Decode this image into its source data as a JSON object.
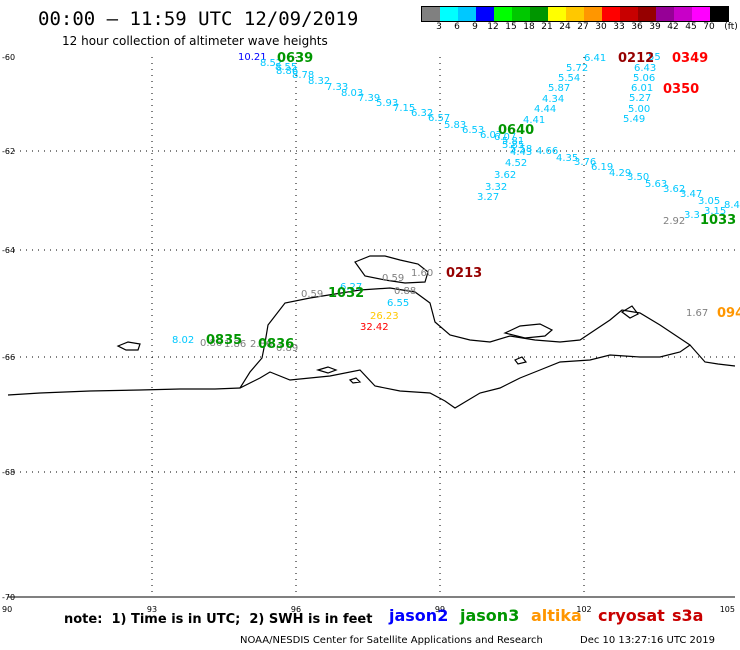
{
  "header": {
    "title": "00:00 – 11:59 UTC 12/09/2019",
    "subtitle": "12 hour collection of altimeter wave heights"
  },
  "color_scale": {
    "colors": [
      "#808080",
      "#00ffff",
      "#00c8ff",
      "#0000ff",
      "#00ff00",
      "#00c800",
      "#009600",
      "#ffff00",
      "#ffc800",
      "#ff9600",
      "#ff0000",
      "#c80000",
      "#960000",
      "#960096",
      "#c800c8",
      "#ff00ff",
      "#000000"
    ],
    "labels": [
      "3",
      "6",
      "9",
      "12",
      "15",
      "18",
      "21",
      "24",
      "27",
      "30",
      "33",
      "36",
      "39",
      "42",
      "45",
      "70",
      "(ft)"
    ]
  },
  "axes": {
    "x_ticks": [
      "90",
      "93",
      "96",
      "99",
      "102",
      "105"
    ],
    "y_ticks": [
      "-60",
      "-62",
      "-64",
      "-66",
      "-68",
      "-70"
    ]
  },
  "readings": [
    {
      "text": "10.21",
      "c": "#0000ff"
    },
    {
      "text": "8.52",
      "c": "#00c8ff"
    },
    {
      "text": "8.55",
      "c": "#00c8ff"
    },
    {
      "text": "8.86",
      "c": "#00c8ff"
    },
    {
      "text": "8.78",
      "c": "#00c8ff"
    },
    {
      "text": "8.32",
      "c": "#00c8ff"
    },
    {
      "text": "7.33",
      "c": "#00c8ff"
    },
    {
      "text": "8.03",
      "c": "#00c8ff"
    },
    {
      "text": "7.39",
      "c": "#00c8ff"
    },
    {
      "text": "5.93",
      "c": "#00c8ff"
    },
    {
      "text": "7.15",
      "c": "#00c8ff"
    },
    {
      "text": "6.32",
      "c": "#00c8ff"
    },
    {
      "text": "6.57",
      "c": "#00c8ff"
    },
    {
      "text": "5.83",
      "c": "#00c8ff"
    },
    {
      "text": "6.53",
      "c": "#00c8ff"
    },
    {
      "text": "6.07",
      "c": "#00c8ff"
    },
    {
      "text": "6.07",
      "c": "#00c8ff"
    },
    {
      "text": "5.81",
      "c": "#00c8ff"
    },
    {
      "text": "5.85",
      "c": "#00c8ff"
    },
    {
      "text": "5.58",
      "c": "#00c8ff"
    },
    {
      "text": "4.43",
      "c": "#00c8ff"
    },
    {
      "text": "4.66",
      "c": "#00c8ff"
    },
    {
      "text": "4.52",
      "c": "#00c8ff"
    },
    {
      "text": "3.62",
      "c": "#00c8ff"
    },
    {
      "text": "3.32",
      "c": "#00c8ff"
    },
    {
      "text": "3.27",
      "c": "#00c8ff"
    },
    {
      "text": "4.41",
      "c": "#00c8ff"
    },
    {
      "text": "4.44",
      "c": "#00c8ff"
    },
    {
      "text": "4.34",
      "c": "#00c8ff"
    },
    {
      "text": "5.87",
      "c": "#00c8ff"
    },
    {
      "text": "5.54",
      "c": "#00c8ff"
    },
    {
      "text": "5.72",
      "c": "#00c8ff"
    },
    {
      "text": "6.41",
      "c": "#00c8ff"
    },
    {
      "text": "4.35",
      "c": "#00c8ff"
    },
    {
      "text": "3.76",
      "c": "#00c8ff"
    },
    {
      "text": "6.19",
      "c": "#00c8ff"
    },
    {
      "text": "4.29",
      "c": "#00c8ff"
    },
    {
      "text": "3.50",
      "c": "#00c8ff"
    },
    {
      "text": "5.63",
      "c": "#00c8ff"
    },
    {
      "text": "3.62",
      "c": "#00c8ff"
    },
    {
      "text": "3.47",
      "c": "#00c8ff"
    },
    {
      "text": "3.05",
      "c": "#00c8ff"
    },
    {
      "text": "3.15",
      "c": "#00c8ff"
    },
    {
      "text": "3.3",
      "c": "#00c8ff"
    },
    {
      "text": "8.4",
      "c": "#00c8ff"
    },
    {
      "text": "2.92",
      "c": "#808080"
    },
    {
      "text": "6.43",
      "c": "#00c8ff"
    },
    {
      "text": "5.06",
      "c": "#00c8ff"
    },
    {
      "text": "6.01",
      "c": "#00c8ff"
    },
    {
      "text": "5.27",
      "c": "#00c8ff"
    },
    {
      "text": "5.00",
      "c": "#00c8ff"
    },
    {
      "text": "5.49",
      "c": "#00c8ff"
    },
    {
      "text": "55",
      "c": "#00c8ff"
    },
    {
      "text": "0.59",
      "c": "#808080"
    },
    {
      "text": "1.60",
      "c": "#808080"
    },
    {
      "text": "0.59",
      "c": "#808080"
    },
    {
      "text": "0.88",
      "c": "#808080"
    },
    {
      "text": "6.27",
      "c": "#00c8ff"
    },
    {
      "text": "6.55",
      "c": "#00c8ff"
    },
    {
      "text": "26.23",
      "c": "#ffc800"
    },
    {
      "text": "32.42",
      "c": "#ff0000"
    },
    {
      "text": "1.67",
      "c": "#808080"
    },
    {
      "text": "8.02",
      "c": "#00c8ff"
    },
    {
      "text": "0.86",
      "c": "#808080"
    },
    {
      "text": "1.86",
      "c": "#808080"
    },
    {
      "text": "2.86",
      "c": "#808080"
    },
    {
      "text": "0.89",
      "c": "#808080"
    }
  ],
  "pass_times": [
    {
      "text": "0639",
      "c": "#009600"
    },
    {
      "text": "0640",
      "c": "#009600"
    },
    {
      "text": "1032",
      "c": "#009600"
    },
    {
      "text": "1033",
      "c": "#009600"
    },
    {
      "text": "0835",
      "c": "#009600"
    },
    {
      "text": "0836",
      "c": "#009600"
    },
    {
      "text": "0212",
      "c": "#960000"
    },
    {
      "text": "0213",
      "c": "#960000"
    },
    {
      "text": "0349",
      "c": "#ff0000"
    },
    {
      "text": "0350",
      "c": "#ff0000"
    },
    {
      "text": "094",
      "c": "#ff9600"
    }
  ],
  "footer": {
    "note": "note:  1) Time is in UTC;  2) SWH is in feet",
    "satellites": [
      {
        "name": "jason2",
        "c": "#0000ff"
      },
      {
        "name": "jason3",
        "c": "#009600"
      },
      {
        "name": "altika",
        "c": "#ff9600"
      },
      {
        "name": "cryosat",
        "c": "#c80000"
      },
      {
        "name": "s3a",
        "c": "#c80000"
      }
    ],
    "credit": "NOAA/NESDIS Center for Satellite Applications and Research",
    "timestamp": "Dec 10 13:27:16 UTC 2019"
  }
}
